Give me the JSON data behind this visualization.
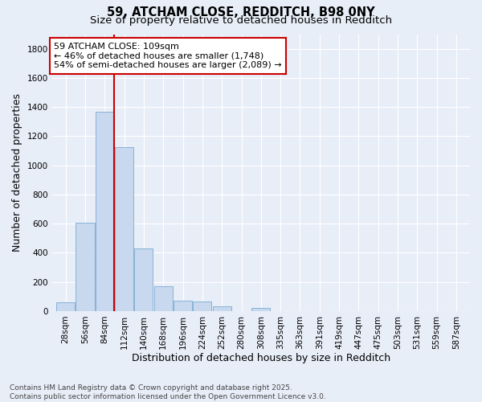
{
  "title1": "59, ATCHAM CLOSE, REDDITCH, B98 0NY",
  "title2": "Size of property relative to detached houses in Redditch",
  "xlabel": "Distribution of detached houses by size in Redditch",
  "ylabel": "Number of detached properties",
  "bar_values": [
    60,
    605,
    1365,
    1125,
    430,
    170,
    70,
    65,
    35,
    0,
    20,
    0,
    0,
    0,
    0,
    0,
    0,
    0,
    0,
    0,
    0
  ],
  "bin_labels": [
    "28sqm",
    "56sqm",
    "84sqm",
    "112sqm",
    "140sqm",
    "168sqm",
    "196sqm",
    "224sqm",
    "252sqm",
    "280sqm",
    "308sqm",
    "335sqm",
    "363sqm",
    "391sqm",
    "419sqm",
    "447sqm",
    "475sqm",
    "503sqm",
    "531sqm",
    "559sqm",
    "587sqm"
  ],
  "bar_color": "#c8d8ef",
  "bar_edge_color": "#7aaad0",
  "bg_color": "#e8eef8",
  "grid_color": "#ffffff",
  "vline_color": "#cc0000",
  "vline_x": 2.5,
  "annotation_text": "59 ATCHAM CLOSE: 109sqm\n← 46% of detached houses are smaller (1,748)\n54% of semi-detached houses are larger (2,089) →",
  "annotation_box_facecolor": "#ffffff",
  "annotation_box_edgecolor": "#cc0000",
  "ylim": [
    0,
    1900
  ],
  "yticks": [
    0,
    200,
    400,
    600,
    800,
    1000,
    1200,
    1400,
    1600,
    1800
  ],
  "footnote": "Contains HM Land Registry data © Crown copyright and database right 2025.\nContains public sector information licensed under the Open Government Licence v3.0.",
  "title_fontsize": 10.5,
  "subtitle_fontsize": 9.5,
  "axis_label_fontsize": 9,
  "tick_fontsize": 7.5,
  "annot_fontsize": 8,
  "footnote_fontsize": 6.5
}
